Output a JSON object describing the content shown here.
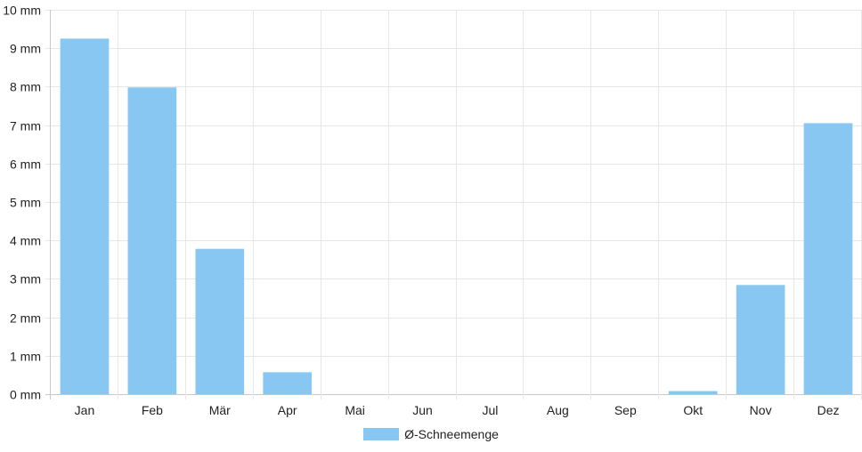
{
  "chart_data": {
    "type": "bar",
    "categories": [
      "Jan",
      "Feb",
      "Mär",
      "Apr",
      "Mai",
      "Jun",
      "Jul",
      "Aug",
      "Sep",
      "Okt",
      "Nov",
      "Dez"
    ],
    "series": [
      {
        "name": "Ø-Schneemenge",
        "values": [
          9.25,
          7.98,
          3.78,
          0.57,
          0,
          0,
          0,
          0,
          0,
          0.08,
          2.84,
          7.05
        ],
        "color": "#87c7f1"
      }
    ],
    "ylim": [
      0,
      10
    ],
    "y_ticks": [
      "0 mm",
      "1 mm",
      "2 mm",
      "3 mm",
      "4 mm",
      "5 mm",
      "6 mm",
      "7 mm",
      "8 mm",
      "9 mm",
      "10 mm"
    ],
    "grid": true,
    "legend_position": "bottom"
  }
}
